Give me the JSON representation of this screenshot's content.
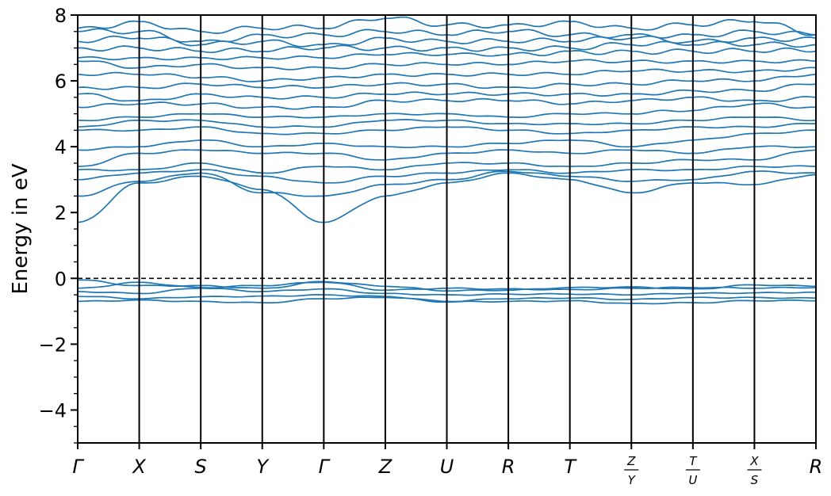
{
  "chart_data": {
    "type": "line",
    "title": "",
    "xlabel": "",
    "ylabel": "Energy in eV",
    "ylim": [
      -5,
      8
    ],
    "yticks": [
      {
        "value": -4,
        "label": "−4"
      },
      {
        "value": -2,
        "label": "−2"
      },
      {
        "value": 0,
        "label": "0"
      },
      {
        "value": 2,
        "label": "2"
      },
      {
        "value": 4,
        "label": "4"
      },
      {
        "value": 6,
        "label": "6"
      },
      {
        "value": 8,
        "label": "8"
      }
    ],
    "yminor_step": 0.5,
    "fermi_level": 0,
    "kpath": [
      {
        "label": "Γ"
      },
      {
        "label": "X"
      },
      {
        "label": "S"
      },
      {
        "label": "Y"
      },
      {
        "label": "Γ"
      },
      {
        "label": "Z"
      },
      {
        "label": "U"
      },
      {
        "label": "R"
      },
      {
        "label": "T"
      },
      {
        "num": "Z",
        "den": "Y"
      },
      {
        "num": "T",
        "den": "U"
      },
      {
        "num": "X",
        "den": "S"
      },
      {
        "label": "R"
      }
    ],
    "line_color": "#1f77b4",
    "valence_bands": [
      [
        -0.05,
        -0.22,
        -0.22,
        -0.3,
        -0.1,
        -0.24,
        -0.38,
        -0.36,
        -0.28,
        -0.26,
        -0.32,
        -0.2,
        -0.24
      ],
      [
        -0.3,
        -0.12,
        -0.28,
        -0.22,
        -0.12,
        -0.36,
        -0.3,
        -0.32,
        -0.34,
        -0.3,
        -0.28,
        -0.3,
        -0.28
      ],
      [
        -0.4,
        -0.46,
        -0.3,
        -0.4,
        -0.32,
        -0.46,
        -0.5,
        -0.48,
        -0.48,
        -0.5,
        -0.46,
        -0.44,
        -0.42
      ],
      [
        -0.55,
        -0.62,
        -0.56,
        -0.54,
        -0.5,
        -0.55,
        -0.7,
        -0.62,
        -0.6,
        -0.64,
        -0.58,
        -0.58,
        -0.6
      ],
      [
        -0.7,
        -0.66,
        -0.7,
        -0.74,
        -0.62,
        -0.58,
        -0.72,
        -0.7,
        -0.68,
        -0.76,
        -0.74,
        -0.68,
        -0.68
      ]
    ],
    "conduction_bands": [
      [
        1.7,
        2.9,
        3.1,
        2.7,
        1.7,
        2.5,
        2.9,
        3.2,
        3.0,
        2.6,
        2.9,
        2.85,
        3.15
      ],
      [
        2.5,
        2.95,
        3.2,
        2.6,
        2.5,
        2.85,
        3.0,
        3.25,
        3.1,
        2.95,
        3.0,
        3.25,
        3.2
      ],
      [
        3.0,
        3.2,
        3.3,
        3.1,
        2.9,
        3.1,
        3.2,
        3.3,
        3.2,
        3.3,
        3.3,
        3.4,
        3.4
      ],
      [
        3.3,
        3.3,
        3.5,
        3.2,
        3.4,
        3.3,
        3.5,
        3.5,
        3.4,
        3.5,
        3.6,
        3.6,
        3.9
      ],
      [
        3.4,
        3.8,
        3.9,
        3.8,
        3.8,
        3.6,
        3.8,
        3.9,
        3.8,
        3.9,
        3.8,
        4.0,
        4.0
      ],
      [
        3.9,
        4.0,
        4.2,
        4.0,
        4.1,
        4.0,
        4.0,
        4.1,
        4.2,
        4.0,
        4.2,
        4.4,
        4.5
      ],
      [
        4.5,
        4.5,
        4.6,
        4.4,
        4.4,
        4.5,
        4.6,
        4.5,
        4.4,
        4.5,
        4.6,
        4.6,
        4.7
      ],
      [
        4.6,
        4.8,
        4.8,
        4.6,
        4.6,
        4.8,
        4.8,
        4.7,
        4.7,
        4.7,
        4.8,
        4.9,
        4.8
      ],
      [
        4.8,
        4.9,
        5.0,
        4.9,
        4.9,
        5.0,
        5.0,
        4.9,
        5.0,
        5.0,
        5.1,
        5.3,
        5.2
      ],
      [
        5.2,
        5.3,
        5.3,
        5.2,
        5.2,
        5.4,
        5.4,
        5.4,
        5.3,
        5.4,
        5.5,
        5.4,
        5.5
      ],
      [
        5.6,
        5.4,
        5.6,
        5.5,
        5.5,
        5.6,
        5.6,
        5.6,
        5.6,
        5.6,
        5.7,
        5.7,
        5.9
      ],
      [
        5.8,
        5.8,
        5.9,
        5.8,
        5.8,
        5.9,
        5.9,
        5.8,
        5.9,
        5.9,
        6.0,
        6.0,
        6.2
      ],
      [
        6.2,
        6.2,
        6.1,
        6.0,
        6.1,
        6.2,
        6.2,
        6.2,
        6.2,
        6.3,
        6.3,
        6.3,
        6.4
      ],
      [
        6.6,
        6.4,
        6.5,
        6.4,
        6.4,
        6.5,
        6.5,
        6.5,
        6.6,
        6.6,
        6.6,
        6.6,
        6.6
      ],
      [
        6.7,
        6.7,
        6.7,
        6.7,
        6.7,
        6.8,
        6.8,
        6.8,
        6.9,
        6.9,
        6.9,
        6.9,
        6.9
      ],
      [
        7.0,
        7.0,
        6.9,
        6.9,
        7.0,
        7.0,
        7.0,
        7.0,
        7.0,
        7.1,
        7.1,
        7.1,
        7.1
      ],
      [
        7.2,
        7.3,
        7.1,
        7.2,
        7.1,
        7.3,
        7.2,
        7.2,
        7.2,
        7.3,
        7.2,
        7.3,
        7.3
      ],
      [
        7.5,
        7.5,
        7.2,
        7.4,
        7.4,
        7.5,
        7.4,
        7.5,
        7.4,
        7.4,
        7.4,
        7.5,
        7.4
      ],
      [
        7.6,
        7.8,
        7.5,
        7.6,
        7.6,
        7.9,
        7.7,
        7.7,
        7.8,
        7.6,
        7.7,
        7.8,
        7.4
      ]
    ]
  }
}
